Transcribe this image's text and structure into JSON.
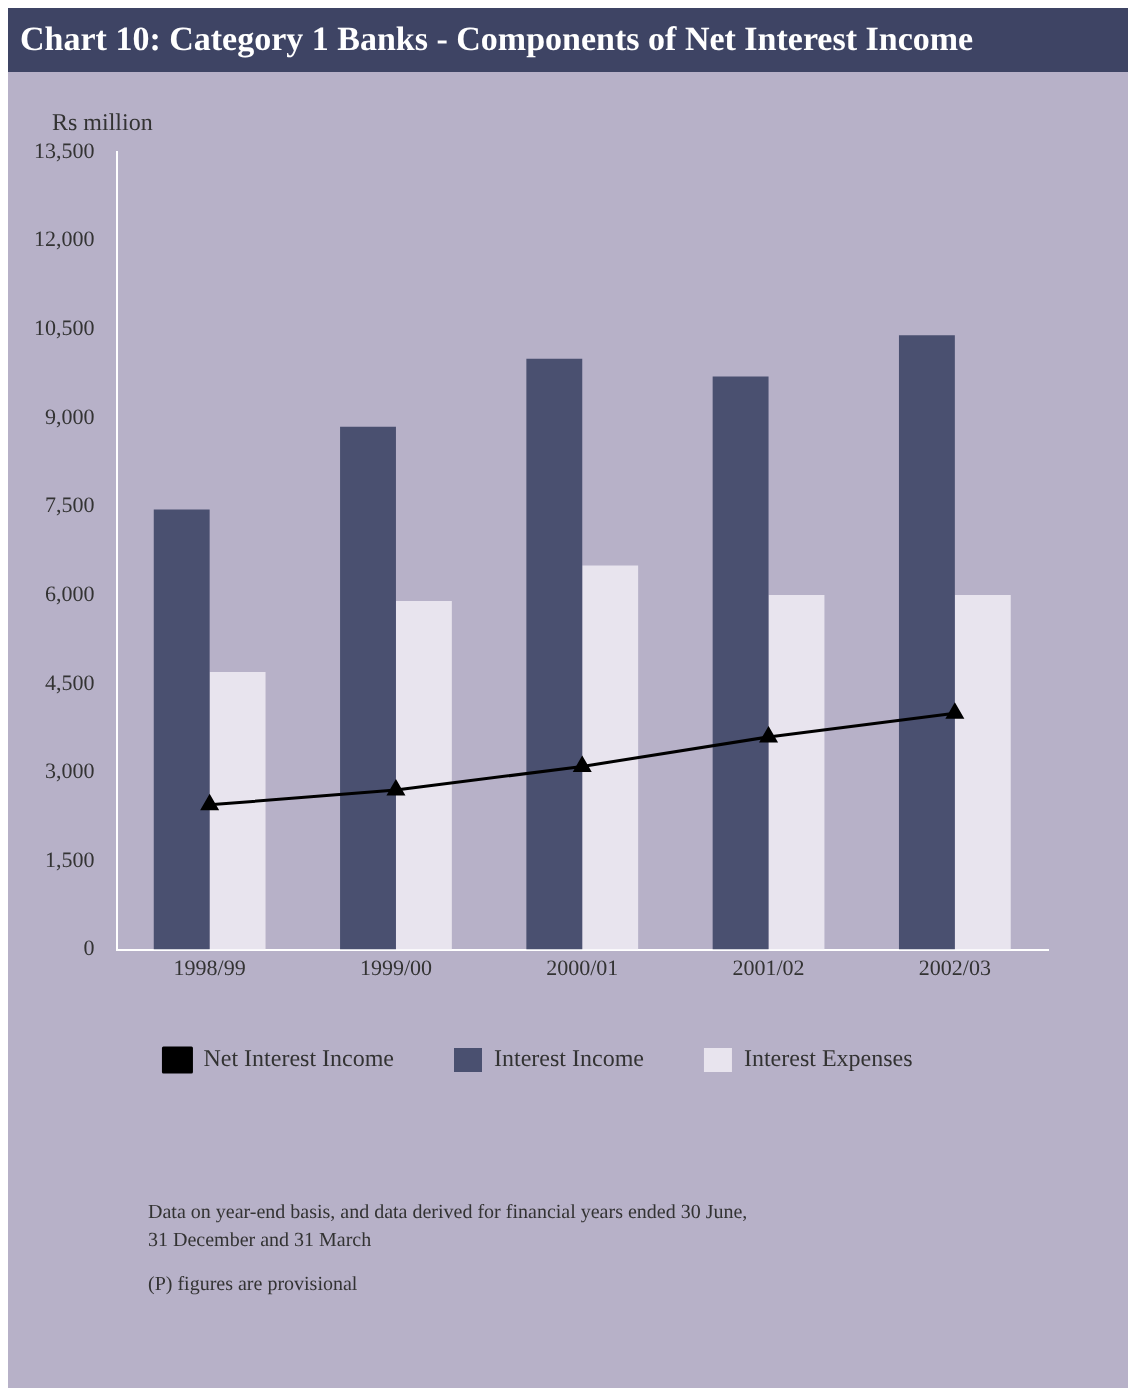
{
  "chart_data": {
    "type": "bar",
    "title": "Chart 10: Category 1 Banks - Components of Net Interest Income",
    "ylabel": "Rs million",
    "categories": [
      "1998/99",
      "1999/00",
      "2000/01",
      "2001/02",
      "2002/03"
    ],
    "series": [
      {
        "name": "Interest Income",
        "color": "#4a5070",
        "values": [
          7450,
          8850,
          10000,
          9700,
          10400
        ]
      },
      {
        "name": "Interest Expenses",
        "color": "#e8e4ee",
        "values": [
          4700,
          5900,
          6500,
          6000,
          6000
        ]
      },
      {
        "name": "Net Interest Income",
        "type": "line",
        "color": "#000000",
        "values": [
          2450,
          2700,
          3100,
          3600,
          4000
        ]
      }
    ],
    "ylim": [
      0,
      13500
    ],
    "yticks": [
      {
        "value": 0,
        "label": "0"
      },
      {
        "value": 1500,
        "label": "1,500"
      },
      {
        "value": 3000,
        "label": "3,000"
      },
      {
        "value": 4500,
        "label": "4,500"
      },
      {
        "value": 6000,
        "label": "6,000"
      },
      {
        "value": 7500,
        "label": "7,500"
      },
      {
        "value": 9000,
        "label": "9,000"
      },
      {
        "value": 10500,
        "label": "10,500"
      },
      {
        "value": 12000,
        "label": "12,000"
      },
      {
        "value": 13500,
        "label": "13,500"
      }
    ],
    "legend": "bottom",
    "marker": "triangle",
    "annotations": [
      "Data on year-end basis, and data derived for financial years ended 30 June,",
      "31 December and 31 March",
      "(P) figures are provisional"
    ]
  }
}
